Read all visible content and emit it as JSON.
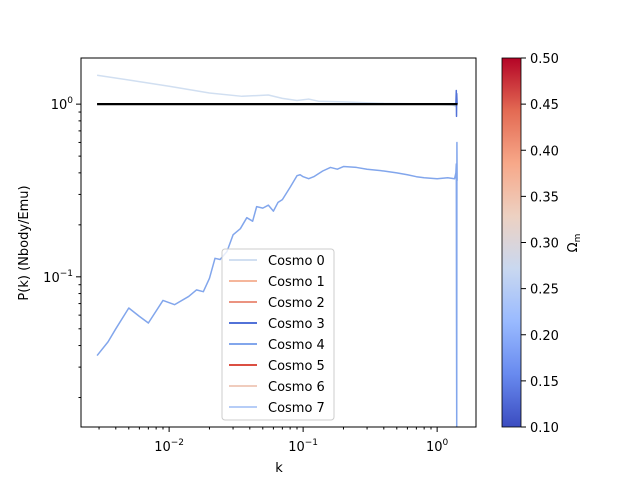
{
  "chart_data": {
    "type": "line",
    "xlabel": "k",
    "ylabel": "P(k) (Nbody/Emu)",
    "xscale": "log",
    "yscale": "log",
    "xlim": [
      0.0022,
      1.95
    ],
    "ylim": [
      0.0135,
      1.85
    ],
    "x_ticks": [
      {
        "value": 0.01,
        "base": "10",
        "exp": "−2"
      },
      {
        "value": 0.1,
        "base": "10",
        "exp": "−1"
      },
      {
        "value": 1,
        "base": "10",
        "exp": "0"
      }
    ],
    "y_ticks": [
      {
        "value": 0.1,
        "base": "10",
        "exp": "−1"
      },
      {
        "value": 1,
        "base": "10",
        "exp": "0"
      }
    ],
    "reference_line": {
      "y": 1.0,
      "x_range": [
        0.0029,
        1.42
      ],
      "color": "#000000"
    },
    "legend_placement": "lower center",
    "series": [
      {
        "name": "Cosmo 0",
        "color": "#c5d7ee",
        "opacity": 0.8,
        "points": [
          [
            0.0029,
            1.47
          ],
          [
            0.005,
            1.38
          ],
          [
            0.01,
            1.27
          ],
          [
            0.02,
            1.16
          ],
          [
            0.035,
            1.11
          ],
          [
            0.055,
            1.13
          ],
          [
            0.07,
            1.08
          ],
          [
            0.09,
            1.05
          ],
          [
            0.11,
            1.07
          ],
          [
            0.13,
            1.04
          ],
          [
            0.2,
            1.03
          ],
          [
            0.4,
            1.01
          ],
          [
            1.0,
            1.0
          ],
          [
            1.3,
            0.99
          ],
          [
            1.38,
            0.97
          ],
          [
            1.4,
            1.0
          ]
        ]
      },
      {
        "name": "Cosmo 1",
        "color": "#f3a98a",
        "opacity": 0.85,
        "points": [
          [
            0.0029,
            1.0
          ],
          [
            1.4,
            1.0
          ]
        ]
      },
      {
        "name": "Cosmo 2",
        "color": "#e8806a",
        "opacity": 0.85,
        "points": [
          [
            0.0029,
            1.0
          ],
          [
            1.4,
            1.0
          ]
        ]
      },
      {
        "name": "Cosmo 3",
        "color": "#5272d8",
        "opacity": 1,
        "points": [
          [
            0.0029,
            1.0
          ],
          [
            1.0,
            1.0
          ],
          [
            1.38,
            1.0
          ],
          [
            1.39,
            1.2
          ],
          [
            1.395,
            0.85
          ],
          [
            1.4,
            1.15
          ],
          [
            1.41,
            1.0
          ]
        ]
      },
      {
        "name": "Cosmo 4",
        "color": "#82a6ec",
        "opacity": 1,
        "points": [
          [
            0.0029,
            0.035
          ],
          [
            0.0035,
            0.042
          ],
          [
            0.004,
            0.05
          ],
          [
            0.005,
            0.066
          ],
          [
            0.006,
            0.059
          ],
          [
            0.007,
            0.054
          ],
          [
            0.009,
            0.073
          ],
          [
            0.011,
            0.069
          ],
          [
            0.014,
            0.077
          ],
          [
            0.016,
            0.084
          ],
          [
            0.018,
            0.082
          ],
          [
            0.02,
            0.098
          ],
          [
            0.022,
            0.128
          ],
          [
            0.024,
            0.126
          ],
          [
            0.027,
            0.14
          ],
          [
            0.03,
            0.175
          ],
          [
            0.034,
            0.19
          ],
          [
            0.038,
            0.22
          ],
          [
            0.042,
            0.21
          ],
          [
            0.045,
            0.255
          ],
          [
            0.05,
            0.25
          ],
          [
            0.055,
            0.26
          ],
          [
            0.06,
            0.24
          ],
          [
            0.065,
            0.27
          ],
          [
            0.07,
            0.28
          ],
          [
            0.08,
            0.33
          ],
          [
            0.09,
            0.385
          ],
          [
            0.095,
            0.39
          ],
          [
            0.1,
            0.38
          ],
          [
            0.11,
            0.37
          ],
          [
            0.12,
            0.38
          ],
          [
            0.14,
            0.41
          ],
          [
            0.16,
            0.43
          ],
          [
            0.18,
            0.42
          ],
          [
            0.2,
            0.435
          ],
          [
            0.25,
            0.43
          ],
          [
            0.3,
            0.42
          ],
          [
            0.4,
            0.41
          ],
          [
            0.5,
            0.4
          ],
          [
            0.6,
            0.39
          ],
          [
            0.7,
            0.38
          ],
          [
            0.8,
            0.375
          ],
          [
            1.0,
            0.37
          ],
          [
            1.2,
            0.375
          ],
          [
            1.35,
            0.37
          ],
          [
            1.38,
            0.4
          ],
          [
            1.39,
            0.45
          ],
          [
            1.395,
            0.06
          ],
          [
            1.4,
            0.0135
          ],
          [
            1.405,
            0.6
          ],
          [
            1.41,
            0.36
          ]
        ]
      },
      {
        "name": "Cosmo 5",
        "color": "#d73c2e",
        "opacity": 0.9,
        "points": [
          [
            0.0029,
            1.0
          ],
          [
            1.4,
            1.0
          ]
        ]
      },
      {
        "name": "Cosmo 6",
        "color": "#eec6b6",
        "opacity": 0.9,
        "points": [
          [
            0.0029,
            1.0
          ],
          [
            1.4,
            1.0
          ]
        ]
      },
      {
        "name": "Cosmo 7",
        "color": "#aec8f6",
        "opacity": 0.9,
        "points": [
          [
            0.0029,
            1.0
          ],
          [
            1.4,
            1.0
          ]
        ]
      }
    ],
    "colorbar": {
      "label_base": "Ω",
      "label_sub": "m",
      "range": [
        0.1,
        0.5
      ],
      "ticks": [
        "0.10",
        "0.15",
        "0.20",
        "0.25",
        "0.30",
        "0.35",
        "0.40",
        "0.45",
        "0.50"
      ],
      "colormap": "coolwarm",
      "stops": [
        "#3b4cc0",
        "#688aef",
        "#99baff",
        "#c9d8f0",
        "#edd1c2",
        "#f7a889",
        "#e36a53",
        "#b40426"
      ]
    }
  }
}
